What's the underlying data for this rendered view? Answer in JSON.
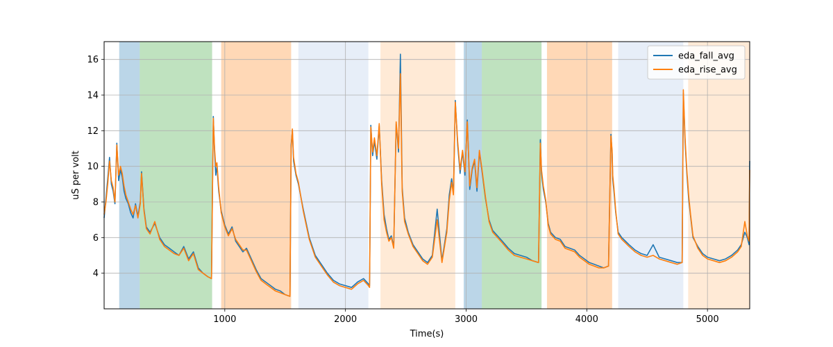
{
  "chart_data": {
    "type": "line",
    "xlabel": "Time(s)",
    "ylabel": "uS per volt",
    "xlim": [
      0,
      5350
    ],
    "ylim": [
      2.0,
      17.0
    ],
    "xticks": [
      1000,
      2000,
      3000,
      4000,
      5000
    ],
    "yticks": [
      4,
      6,
      8,
      10,
      12,
      14,
      16
    ],
    "grid": true,
    "legend_position": "top-right",
    "bands": [
      {
        "x0": 125,
        "x1": 295,
        "color": "#1f77b4",
        "opacity": 0.3
      },
      {
        "x0": 295,
        "x1": 895,
        "color": "#2ca02c",
        "opacity": 0.3
      },
      {
        "x0": 970,
        "x1": 1550,
        "color": "#ff7f0e",
        "opacity": 0.3
      },
      {
        "x0": 1610,
        "x1": 2190,
        "color": "#aec7e8",
        "opacity": 0.3
      },
      {
        "x0": 2290,
        "x1": 2910,
        "color": "#ffbb78",
        "opacity": 0.3
      },
      {
        "x0": 2980,
        "x1": 3130,
        "color": "#1f77b4",
        "opacity": 0.3
      },
      {
        "x0": 3130,
        "x1": 3625,
        "color": "#2ca02c",
        "opacity": 0.3
      },
      {
        "x0": 3670,
        "x1": 4210,
        "color": "#ff7f0e",
        "opacity": 0.3
      },
      {
        "x0": 4260,
        "x1": 4800,
        "color": "#aec7e8",
        "opacity": 0.3
      },
      {
        "x0": 4840,
        "x1": 5350,
        "color": "#ffbb78",
        "opacity": 0.3
      }
    ],
    "series": [
      {
        "name": "eda_fall_avg",
        "color": "#1f77b4",
        "x": [
          0,
          15,
          30,
          45,
          60,
          75,
          90,
          105,
          120,
          135,
          150,
          165,
          180,
          200,
          220,
          240,
          260,
          280,
          300,
          310,
          330,
          350,
          380,
          420,
          460,
          500,
          540,
          580,
          620,
          660,
          700,
          740,
          780,
          820,
          860,
          890,
          895,
          905,
          915,
          925,
          935,
          950,
          970,
          1000,
          1030,
          1060,
          1090,
          1120,
          1150,
          1180,
          1220,
          1260,
          1300,
          1340,
          1380,
          1420,
          1460,
          1500,
          1540,
          1550,
          1560,
          1570,
          1590,
          1610,
          1650,
          1700,
          1750,
          1800,
          1850,
          1900,
          1950,
          2000,
          2050,
          2100,
          2150,
          2190,
          2200,
          2210,
          2225,
          2240,
          2260,
          2280,
          2300,
          2320,
          2340,
          2360,
          2380,
          2400,
          2420,
          2440,
          2455,
          2470,
          2490,
          2520,
          2560,
          2600,
          2640,
          2680,
          2720,
          2760,
          2800,
          2840,
          2860,
          2880,
          2895,
          2910,
          2930,
          2950,
          2970,
          2990,
          3010,
          3030,
          3050,
          3070,
          3090,
          3110,
          3130,
          3160,
          3190,
          3220,
          3260,
          3300,
          3350,
          3400,
          3450,
          3500,
          3550,
          3600,
          3615,
          3625,
          3640,
          3660,
          3680,
          3700,
          3740,
          3780,
          3820,
          3860,
          3900,
          3940,
          3980,
          4020,
          4060,
          4100,
          4140,
          4180,
          4200,
          4210,
          4215,
          4225,
          4240,
          4260,
          4290,
          4320,
          4350,
          4400,
          4450,
          4500,
          4550,
          4600,
          4650,
          4700,
          4750,
          4790,
          4800,
          4815,
          4830,
          4845,
          4860,
          4880,
          4920,
          4960,
          5000,
          5050,
          5100,
          5150,
          5200,
          5250,
          5280,
          5310,
          5330,
          5345,
          5350
        ],
        "values": [
          7.1,
          8.2,
          9.3,
          10.5,
          9.0,
          8.6,
          7.9,
          11.3,
          9.2,
          9.8,
          9.4,
          8.6,
          8.2,
          7.9,
          7.4,
          7.1,
          7.9,
          7.2,
          8.0,
          9.7,
          7.6,
          6.6,
          6.3,
          6.8,
          6.0,
          5.6,
          5.4,
          5.2,
          5.0,
          5.5,
          4.8,
          5.2,
          4.3,
          4.0,
          3.8,
          3.7,
          7.0,
          12.8,
          10.8,
          9.5,
          10.0,
          8.6,
          7.5,
          6.7,
          6.2,
          6.6,
          5.8,
          5.5,
          5.2,
          5.4,
          4.8,
          4.2,
          3.7,
          3.5,
          3.3,
          3.1,
          3.0,
          2.8,
          2.7,
          11.2,
          12.0,
          10.3,
          9.5,
          9.0,
          7.6,
          6.0,
          5.0,
          4.5,
          4.0,
          3.6,
          3.4,
          3.3,
          3.2,
          3.5,
          3.7,
          3.4,
          3.3,
          12.3,
          10.6,
          11.4,
          10.4,
          12.3,
          9.2,
          7.3,
          6.5,
          5.9,
          6.1,
          5.5,
          12.4,
          10.8,
          16.3,
          8.8,
          7.1,
          6.3,
          5.6,
          5.2,
          4.8,
          4.6,
          5.0,
          7.6,
          4.7,
          6.5,
          8.4,
          9.3,
          8.5,
          13.7,
          11.2,
          9.6,
          10.8,
          9.5,
          12.6,
          8.7,
          9.8,
          10.3,
          8.6,
          10.8,
          9.8,
          8.2,
          7.0,
          6.4,
          6.1,
          5.8,
          5.4,
          5.1,
          5.0,
          4.9,
          4.7,
          4.6,
          11.5,
          9.6,
          8.7,
          8.0,
          6.8,
          6.3,
          6.0,
          5.9,
          5.5,
          5.4,
          5.3,
          5.0,
          4.8,
          4.6,
          4.5,
          4.4,
          4.3,
          4.4,
          11.8,
          10.7,
          9.3,
          8.6,
          7.4,
          6.3,
          6.0,
          5.8,
          5.6,
          5.3,
          5.1,
          5.0,
          5.6,
          4.9,
          4.8,
          4.7,
          4.6,
          4.6,
          14.1,
          11.3,
          9.5,
          8.1,
          7.2,
          6.0,
          5.5,
          5.1,
          4.9,
          4.8,
          4.7,
          4.8,
          5.0,
          5.3,
          5.6,
          6.3,
          6.0,
          5.6,
          10.3
        ]
      },
      {
        "name": "eda_rise_avg",
        "color": "#ff7f0e",
        "x": [
          0,
          15,
          30,
          45,
          60,
          75,
          90,
          105,
          120,
          135,
          150,
          165,
          180,
          200,
          220,
          240,
          260,
          280,
          300,
          310,
          330,
          350,
          380,
          420,
          460,
          500,
          540,
          580,
          620,
          660,
          700,
          740,
          780,
          820,
          860,
          890,
          895,
          905,
          915,
          925,
          935,
          950,
          970,
          1000,
          1030,
          1060,
          1090,
          1120,
          1150,
          1180,
          1220,
          1260,
          1300,
          1340,
          1380,
          1420,
          1460,
          1500,
          1540,
          1550,
          1560,
          1570,
          1590,
          1610,
          1650,
          1700,
          1750,
          1800,
          1850,
          1900,
          1950,
          2000,
          2050,
          2100,
          2150,
          2190,
          2200,
          2210,
          2225,
          2240,
          2260,
          2280,
          2300,
          2320,
          2340,
          2360,
          2380,
          2400,
          2420,
          2440,
          2455,
          2470,
          2490,
          2520,
          2560,
          2600,
          2640,
          2680,
          2720,
          2760,
          2800,
          2840,
          2860,
          2880,
          2895,
          2910,
          2930,
          2950,
          2970,
          2990,
          3010,
          3030,
          3050,
          3070,
          3090,
          3110,
          3130,
          3160,
          3190,
          3220,
          3260,
          3300,
          3350,
          3400,
          3450,
          3500,
          3550,
          3600,
          3615,
          3625,
          3640,
          3660,
          3680,
          3700,
          3740,
          3780,
          3820,
          3860,
          3900,
          3940,
          3980,
          4020,
          4060,
          4100,
          4140,
          4180,
          4200,
          4210,
          4215,
          4225,
          4240,
          4260,
          4290,
          4320,
          4350,
          4400,
          4450,
          4500,
          4550,
          4600,
          4650,
          4700,
          4750,
          4790,
          4800,
          4815,
          4830,
          4845,
          4860,
          4880,
          4920,
          4960,
          5000,
          5050,
          5100,
          5150,
          5200,
          5250,
          5280,
          5310,
          5330,
          5345,
          5350
        ],
        "values": [
          7.3,
          8.0,
          9.0,
          10.3,
          9.2,
          8.8,
          8.0,
          11.2,
          9.5,
          10.0,
          9.6,
          8.9,
          8.4,
          8.0,
          7.6,
          7.3,
          7.8,
          7.1,
          7.9,
          9.6,
          7.5,
          6.5,
          6.2,
          6.9,
          5.9,
          5.5,
          5.3,
          5.1,
          5.0,
          5.4,
          4.7,
          5.1,
          4.2,
          4.0,
          3.8,
          3.7,
          6.9,
          12.7,
          11.0,
          10.0,
          10.2,
          8.8,
          7.4,
          6.6,
          6.1,
          6.5,
          5.9,
          5.6,
          5.3,
          5.3,
          4.7,
          4.1,
          3.6,
          3.4,
          3.2,
          3.0,
          2.9,
          2.8,
          2.7,
          11.0,
          12.1,
          10.5,
          9.6,
          9.1,
          7.5,
          5.9,
          4.9,
          4.4,
          3.9,
          3.5,
          3.3,
          3.2,
          3.1,
          3.4,
          3.6,
          3.3,
          3.2,
          12.2,
          10.8,
          11.6,
          10.6,
          12.4,
          9.0,
          7.0,
          6.3,
          5.8,
          6.0,
          5.4,
          12.5,
          11.0,
          15.2,
          8.6,
          6.9,
          6.2,
          5.5,
          5.1,
          4.7,
          4.5,
          4.9,
          7.0,
          4.6,
          6.3,
          8.1,
          9.1,
          8.4,
          13.6,
          11.4,
          9.8,
          10.9,
          9.7,
          12.5,
          8.9,
          9.9,
          10.4,
          8.8,
          10.9,
          9.9,
          8.3,
          6.9,
          6.3,
          6.0,
          5.7,
          5.3,
          5.0,
          4.9,
          4.8,
          4.7,
          4.6,
          11.3,
          9.8,
          8.9,
          8.1,
          6.7,
          6.2,
          5.9,
          5.8,
          5.4,
          5.3,
          5.2,
          4.9,
          4.7,
          4.5,
          4.4,
          4.3,
          4.3,
          4.4,
          11.7,
          10.9,
          9.5,
          8.8,
          7.5,
          6.2,
          5.9,
          5.7,
          5.5,
          5.2,
          5.0,
          4.9,
          5.0,
          4.8,
          4.7,
          4.6,
          4.5,
          4.6,
          14.3,
          11.5,
          9.7,
          8.3,
          7.3,
          6.1,
          5.4,
          5.0,
          4.8,
          4.7,
          4.6,
          4.7,
          4.9,
          5.2,
          5.5,
          6.9,
          6.1,
          5.8,
          9.8
        ]
      }
    ]
  }
}
